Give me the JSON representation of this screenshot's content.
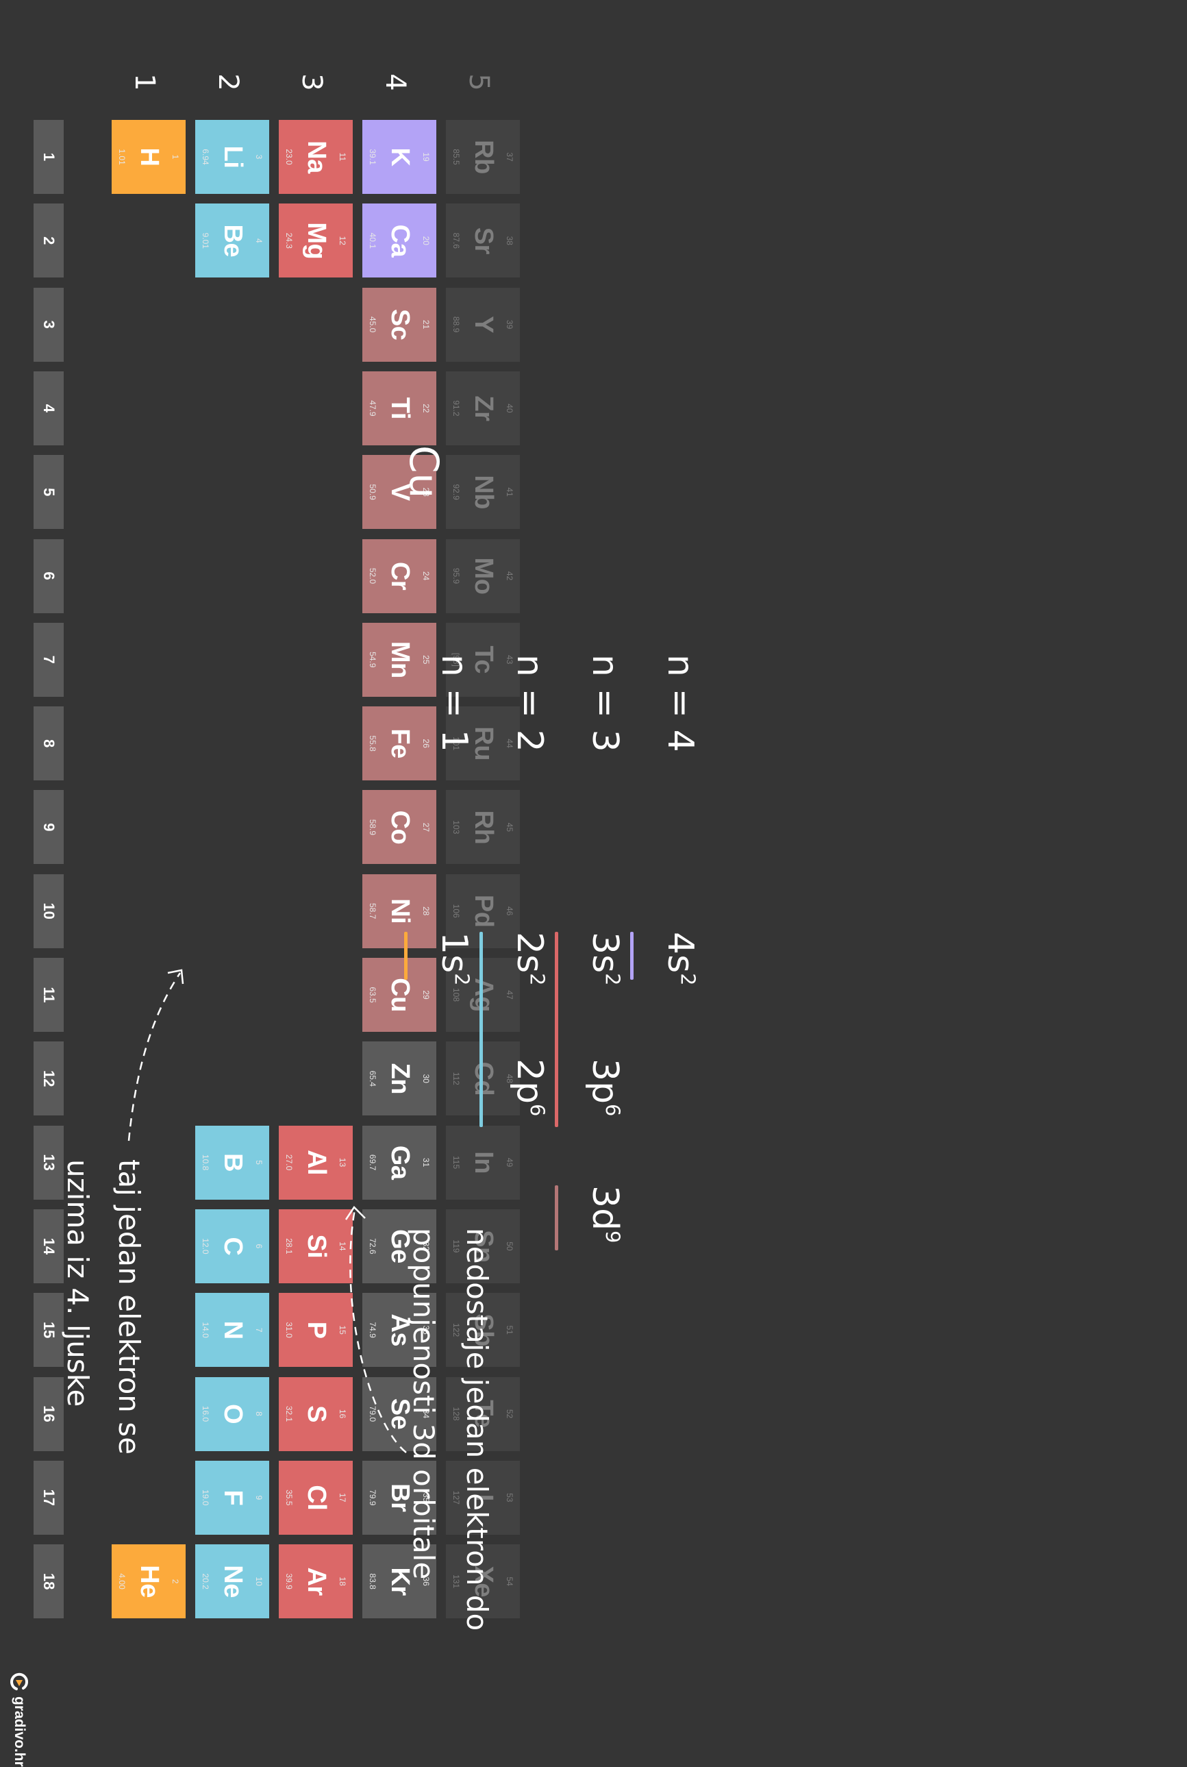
{
  "groups": [
    "1",
    "2",
    "3",
    "4",
    "5",
    "6",
    "7",
    "8",
    "9",
    "10",
    "11",
    "12",
    "13",
    "14",
    "15",
    "16",
    "17",
    "18"
  ],
  "periods": [
    "1",
    "2",
    "3",
    "4",
    "5"
  ],
  "colors": {
    "s1": "#fcaa3c",
    "s2": "#7ecce0",
    "s3": "#db6868",
    "s4": "#b3a3f6",
    "d": "#b47777",
    "neutral": "#5b5b5b",
    "faint": "#424242",
    "group_header": "#5a5a5a",
    "background": "#353535"
  },
  "elements": [
    {
      "z": "1",
      "sym": "H",
      "mass": "1.01",
      "period": 1,
      "group": 1,
      "cat": "s1"
    },
    {
      "z": "2",
      "sym": "He",
      "mass": "4.00",
      "period": 1,
      "group": 18,
      "cat": "s1"
    },
    {
      "z": "3",
      "sym": "Li",
      "mass": "6.94",
      "period": 2,
      "group": 1,
      "cat": "s2"
    },
    {
      "z": "4",
      "sym": "Be",
      "mass": "9.01",
      "period": 2,
      "group": 2,
      "cat": "s2"
    },
    {
      "z": "5",
      "sym": "B",
      "mass": "10.8",
      "period": 2,
      "group": 13,
      "cat": "s2"
    },
    {
      "z": "6",
      "sym": "C",
      "mass": "12.0",
      "period": 2,
      "group": 14,
      "cat": "s2"
    },
    {
      "z": "7",
      "sym": "N",
      "mass": "14.0",
      "period": 2,
      "group": 15,
      "cat": "s2"
    },
    {
      "z": "8",
      "sym": "O",
      "mass": "16.0",
      "period": 2,
      "group": 16,
      "cat": "s2"
    },
    {
      "z": "9",
      "sym": "F",
      "mass": "19.0",
      "period": 2,
      "group": 17,
      "cat": "s2"
    },
    {
      "z": "10",
      "sym": "Ne",
      "mass": "20.2",
      "period": 2,
      "group": 18,
      "cat": "s2"
    },
    {
      "z": "11",
      "sym": "Na",
      "mass": "23.0",
      "period": 3,
      "group": 1,
      "cat": "s3"
    },
    {
      "z": "12",
      "sym": "Mg",
      "mass": "24.3",
      "period": 3,
      "group": 2,
      "cat": "s3"
    },
    {
      "z": "13",
      "sym": "Al",
      "mass": "27.0",
      "period": 3,
      "group": 13,
      "cat": "s3"
    },
    {
      "z": "14",
      "sym": "Si",
      "mass": "28.1",
      "period": 3,
      "group": 14,
      "cat": "s3"
    },
    {
      "z": "15",
      "sym": "P",
      "mass": "31.0",
      "period": 3,
      "group": 15,
      "cat": "s3"
    },
    {
      "z": "16",
      "sym": "S",
      "mass": "32.1",
      "period": 3,
      "group": 16,
      "cat": "s3"
    },
    {
      "z": "17",
      "sym": "Cl",
      "mass": "35.5",
      "period": 3,
      "group": 17,
      "cat": "s3"
    },
    {
      "z": "18",
      "sym": "Ar",
      "mass": "39.9",
      "period": 3,
      "group": 18,
      "cat": "s3"
    },
    {
      "z": "19",
      "sym": "K",
      "mass": "39.1",
      "period": 4,
      "group": 1,
      "cat": "s4"
    },
    {
      "z": "20",
      "sym": "Ca",
      "mass": "40.1",
      "period": 4,
      "group": 2,
      "cat": "s4"
    },
    {
      "z": "21",
      "sym": "Sc",
      "mass": "45.0",
      "period": 4,
      "group": 3,
      "cat": "d"
    },
    {
      "z": "22",
      "sym": "Ti",
      "mass": "47.9",
      "period": 4,
      "group": 4,
      "cat": "d"
    },
    {
      "z": "23",
      "sym": "V",
      "mass": "50.9",
      "period": 4,
      "group": 5,
      "cat": "d"
    },
    {
      "z": "24",
      "sym": "Cr",
      "mass": "52.0",
      "period": 4,
      "group": 6,
      "cat": "d"
    },
    {
      "z": "25",
      "sym": "Mn",
      "mass": "54.9",
      "period": 4,
      "group": 7,
      "cat": "d"
    },
    {
      "z": "26",
      "sym": "Fe",
      "mass": "55.8",
      "period": 4,
      "group": 8,
      "cat": "d"
    },
    {
      "z": "27",
      "sym": "Co",
      "mass": "58.9",
      "period": 4,
      "group": 9,
      "cat": "d"
    },
    {
      "z": "28",
      "sym": "Ni",
      "mass": "58.7",
      "period": 4,
      "group": 10,
      "cat": "d"
    },
    {
      "z": "29",
      "sym": "Cu",
      "mass": "63.5",
      "period": 4,
      "group": 11,
      "cat": "d"
    },
    {
      "z": "30",
      "sym": "Zn",
      "mass": "65.4",
      "period": 4,
      "group": 12,
      "cat": "neutral"
    },
    {
      "z": "31",
      "sym": "Ga",
      "mass": "69.7",
      "period": 4,
      "group": 13,
      "cat": "neutral"
    },
    {
      "z": "32",
      "sym": "Ge",
      "mass": "72.6",
      "period": 4,
      "group": 14,
      "cat": "neutral"
    },
    {
      "z": "33",
      "sym": "As",
      "mass": "74.9",
      "period": 4,
      "group": 15,
      "cat": "neutral"
    },
    {
      "z": "34",
      "sym": "Se",
      "mass": "79.0",
      "period": 4,
      "group": 16,
      "cat": "neutral"
    },
    {
      "z": "35",
      "sym": "Br",
      "mass": "79.9",
      "period": 4,
      "group": 17,
      "cat": "neutral"
    },
    {
      "z": "36",
      "sym": "Kr",
      "mass": "83.8",
      "period": 4,
      "group": 18,
      "cat": "neutral"
    },
    {
      "z": "37",
      "sym": "Rb",
      "mass": "85.5",
      "period": 5,
      "group": 1,
      "cat": "faint"
    },
    {
      "z": "38",
      "sym": "Sr",
      "mass": "87.6",
      "period": 5,
      "group": 2,
      "cat": "faint"
    },
    {
      "z": "39",
      "sym": "Y",
      "mass": "88.9",
      "period": 5,
      "group": 3,
      "cat": "faint"
    },
    {
      "z": "40",
      "sym": "Zr",
      "mass": "91.2",
      "period": 5,
      "group": 4,
      "cat": "faint"
    },
    {
      "z": "41",
      "sym": "Nb",
      "mass": "92.9",
      "period": 5,
      "group": 5,
      "cat": "faint"
    },
    {
      "z": "42",
      "sym": "Mo",
      "mass": "95.9",
      "period": 5,
      "group": 6,
      "cat": "faint"
    },
    {
      "z": "43",
      "sym": "Tc",
      "mass": "[98]",
      "period": 5,
      "group": 7,
      "cat": "faint"
    },
    {
      "z": "44",
      "sym": "Ru",
      "mass": "101",
      "period": 5,
      "group": 8,
      "cat": "faint"
    },
    {
      "z": "45",
      "sym": "Rh",
      "mass": "103",
      "period": 5,
      "group": 9,
      "cat": "faint"
    },
    {
      "z": "46",
      "sym": "Pd",
      "mass": "106",
      "period": 5,
      "group": 10,
      "cat": "faint"
    },
    {
      "z": "47",
      "sym": "Ag",
      "mass": "108",
      "period": 5,
      "group": 11,
      "cat": "faint"
    },
    {
      "z": "48",
      "sym": "Cd",
      "mass": "112",
      "period": 5,
      "group": 12,
      "cat": "faint"
    },
    {
      "z": "49",
      "sym": "In",
      "mass": "115",
      "period": 5,
      "group": 13,
      "cat": "faint"
    },
    {
      "z": "50",
      "sym": "Sn",
      "mass": "119",
      "period": 5,
      "group": 14,
      "cat": "faint"
    },
    {
      "z": "51",
      "sym": "Sb",
      "mass": "122",
      "period": 5,
      "group": 15,
      "cat": "faint"
    },
    {
      "z": "52",
      "sym": "Te",
      "mass": "128",
      "period": 5,
      "group": 16,
      "cat": "faint"
    },
    {
      "z": "53",
      "sym": "I",
      "mass": "127",
      "period": 5,
      "group": 17,
      "cat": "faint"
    },
    {
      "z": "54",
      "sym": "Xe",
      "mass": "131",
      "period": 5,
      "group": 18,
      "cat": "faint"
    }
  ],
  "notes": {
    "element": "Cu",
    "shells": [
      {
        "n": "n = 1",
        "orbitals": [
          {
            "base": "1s",
            "exp": "2",
            "color": "#fcaa3c"
          }
        ]
      },
      {
        "n": "n = 2",
        "orbitals": [
          {
            "base": "2s",
            "exp": "2",
            "color": "#7ecce0"
          },
          {
            "base": "2p",
            "exp": "6",
            "color": "#7ecce0"
          }
        ]
      },
      {
        "n": "n = 3",
        "orbitals": [
          {
            "base": "3s",
            "exp": "2",
            "color": "#db6868"
          },
          {
            "base": "3p",
            "exp": "6",
            "color": "#db6868"
          },
          {
            "base": "3d",
            "exp": "9",
            "color": "#b47777"
          }
        ]
      },
      {
        "n": "n = 4",
        "orbitals": [
          {
            "base": "4s",
            "exp": "2",
            "color": "#b3a3f6"
          }
        ]
      }
    ],
    "annotation_3d_line1": "nedostaje jedan elektron do",
    "annotation_3d_line2": "popunjenosti 3d orbitale",
    "annotation_4s_line1": "taj jedan elektron se",
    "annotation_4s_line2": "uzima iz 4. ljuske"
  },
  "logo": {
    "text": "gradivo.hr",
    "icon": "gradivo-logo-icon"
  }
}
